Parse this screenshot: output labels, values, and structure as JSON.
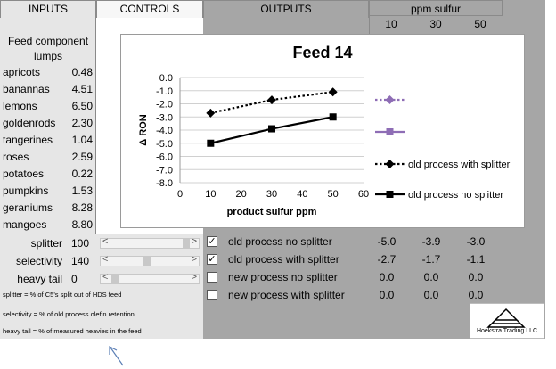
{
  "headers": {
    "inputs": "INPUTS",
    "controls": "CONTROLS",
    "outputs": "OUTPUTS",
    "ppm_sulfur": "ppm sulfur",
    "ppm_cols": [
      "10",
      "30",
      "50"
    ]
  },
  "feed": {
    "title_line1": "Feed component",
    "title_line2": "lumps",
    "items": [
      {
        "name": "apricots",
        "value": "0.48"
      },
      {
        "name": "banannas",
        "value": "4.51"
      },
      {
        "name": "lemons",
        "value": "6.50"
      },
      {
        "name": "goldenrods",
        "value": "2.30"
      },
      {
        "name": "tangerines",
        "value": "1.04"
      },
      {
        "name": "roses",
        "value": "2.59"
      },
      {
        "name": "potatoes",
        "value": "0.22"
      },
      {
        "name": "pumpkins",
        "value": "1.53"
      },
      {
        "name": "geraniums",
        "value": "8.28"
      },
      {
        "name": "mangoes",
        "value": "8.80"
      }
    ]
  },
  "controls": [
    {
      "label": "splitter",
      "value": "100",
      "level": 1.0
    },
    {
      "label": "selectivity",
      "value": "140",
      "level": 0.45
    },
    {
      "label": "heavy tail",
      "value": "0",
      "level": 0.0
    }
  ],
  "notes": [
    "splitter = % of C5's split out of HDS feed",
    "selectivity = % of old process olefin retention",
    "heavy tail = % of measured heavies in the feed"
  ],
  "outputs": [
    {
      "checked": true,
      "check_mark": "✓",
      "label": "old process no splitter",
      "v10": "-5.0",
      "v30": "-3.9",
      "v50": "-3.0"
    },
    {
      "checked": true,
      "check_mark": "✓",
      "label": "old process with splitter",
      "v10": "-2.7",
      "v30": "-1.7",
      "v50": "-1.1"
    },
    {
      "checked": false,
      "check_mark": "",
      "label": "new process no splitter",
      "v10": "0.0",
      "v30": "0.0",
      "v50": "0.0"
    },
    {
      "checked": false,
      "check_mark": "",
      "label": "new process with splitter",
      "v10": "0.0",
      "v30": "0.0",
      "v50": "0.0"
    }
  ],
  "logo_text": "Hoekstra Trading LLC",
  "chart_data": {
    "type": "line",
    "title": "Feed 14",
    "xlabel": "product sulfur ppm",
    "ylabel": "Δ RON",
    "xlim": [
      0,
      60
    ],
    "ylim": [
      -8.0,
      0.0
    ],
    "x_ticks": [
      "0",
      "10",
      "20",
      "30",
      "40",
      "50",
      "60"
    ],
    "y_ticks": [
      "0.0",
      "-1.0",
      "-2.0",
      "-3.0",
      "-4.0",
      "-5.0",
      "-6.0",
      "-7.0",
      "-8.0"
    ],
    "grid": true,
    "legend_position": "right",
    "series": [
      {
        "name": "",
        "color": "#8e6db5",
        "style": "dotted",
        "marker": "diamond",
        "x": [],
        "y": []
      },
      {
        "name": "",
        "color": "#8e6db5",
        "style": "solid",
        "marker": "square",
        "x": [],
        "y": []
      },
      {
        "name": "old process with splitter",
        "color": "#000000",
        "style": "dotted",
        "marker": "diamond",
        "x": [
          10,
          30,
          50
        ],
        "y": [
          -2.7,
          -1.7,
          -1.1
        ]
      },
      {
        "name": "old process no splitter",
        "color": "#000000",
        "style": "solid",
        "marker": "square",
        "x": [
          10,
          30,
          50
        ],
        "y": [
          -5.0,
          -3.9,
          -3.0
        ]
      }
    ]
  }
}
